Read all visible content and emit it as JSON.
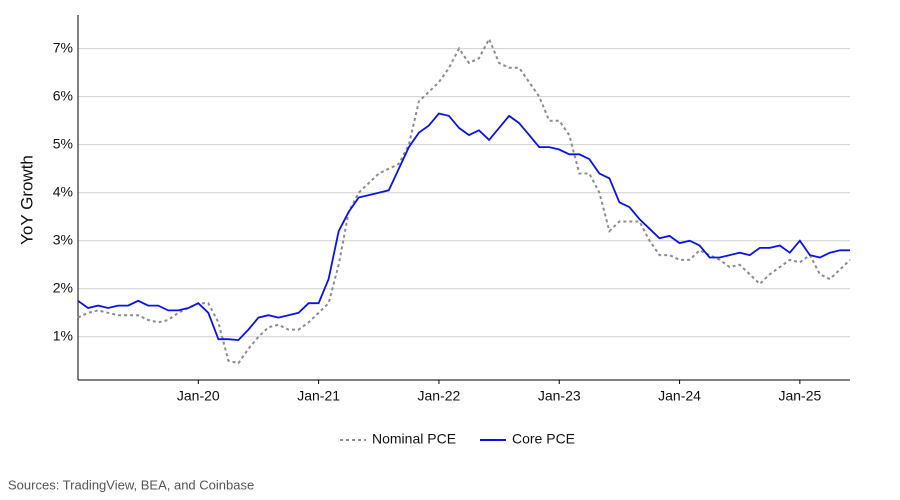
{
  "chart_data": {
    "type": "line",
    "y_label": "YoY Growth",
    "source": "Sources: TradingView, BEA, and Coinbase",
    "x": [
      "Jan-19",
      "Feb-19",
      "Mar-19",
      "Apr-19",
      "May-19",
      "Jun-19",
      "Jul-19",
      "Aug-19",
      "Sep-19",
      "Oct-19",
      "Nov-19",
      "Dec-19",
      "Jan-20",
      "Feb-20",
      "Mar-20",
      "Apr-20",
      "May-20",
      "Jun-20",
      "Jul-20",
      "Aug-20",
      "Sep-20",
      "Oct-20",
      "Nov-20",
      "Dec-20",
      "Jan-21",
      "Feb-21",
      "Mar-21",
      "Apr-21",
      "May-21",
      "Jun-21",
      "Jul-21",
      "Aug-21",
      "Sep-21",
      "Oct-21",
      "Nov-21",
      "Dec-21",
      "Jan-22",
      "Feb-22",
      "Mar-22",
      "Apr-22",
      "May-22",
      "Jun-22",
      "Jul-22",
      "Aug-22",
      "Sep-22",
      "Oct-22",
      "Nov-22",
      "Dec-22",
      "Jan-23",
      "Feb-23",
      "Mar-23",
      "Apr-23",
      "May-23",
      "Jun-23",
      "Jul-23",
      "Aug-23",
      "Sep-23",
      "Oct-23",
      "Nov-23",
      "Dec-23",
      "Jan-24",
      "Feb-24",
      "Mar-24",
      "Apr-24",
      "May-24",
      "Jun-24",
      "Jul-24",
      "Aug-24",
      "Sep-24",
      "Oct-24",
      "Nov-24",
      "Dec-24",
      "Jan-25",
      "Feb-25",
      "Mar-25",
      "Apr-25",
      "May-25",
      "Jun-25"
    ],
    "xticks": [
      "Jan-20",
      "Jan-21",
      "Jan-22",
      "Jan-23",
      "Jan-24",
      "Jan-25"
    ],
    "series": [
      {
        "name": "Nominal PCE",
        "color": "#8c8c8c",
        "dash": true,
        "values": [
          1.4,
          1.5,
          1.55,
          1.5,
          1.45,
          1.45,
          1.45,
          1.35,
          1.3,
          1.35,
          1.5,
          1.6,
          1.7,
          1.7,
          1.3,
          0.5,
          0.45,
          0.75,
          1.0,
          1.2,
          1.25,
          1.15,
          1.15,
          1.3,
          1.5,
          1.7,
          2.5,
          3.6,
          4.0,
          4.2,
          4.4,
          4.5,
          4.6,
          5.0,
          5.9,
          6.1,
          6.3,
          6.6,
          7.0,
          6.7,
          6.8,
          7.2,
          6.7,
          6.6,
          6.6,
          6.3,
          6.0,
          5.5,
          5.5,
          5.2,
          4.4,
          4.4,
          4.0,
          3.2,
          3.4,
          3.4,
          3.4,
          3.0,
          2.7,
          2.7,
          2.6,
          2.6,
          2.8,
          2.7,
          2.6,
          2.45,
          2.5,
          2.3,
          2.1,
          2.3,
          2.45,
          2.6,
          2.55,
          2.7,
          2.3,
          2.2,
          2.4,
          2.6
        ]
      },
      {
        "name": "Core PCE",
        "color": "#0a14e6",
        "dash": false,
        "values": [
          1.75,
          1.6,
          1.65,
          1.6,
          1.65,
          1.65,
          1.75,
          1.65,
          1.65,
          1.55,
          1.55,
          1.6,
          1.7,
          1.5,
          0.95,
          0.95,
          0.93,
          1.15,
          1.4,
          1.45,
          1.4,
          1.45,
          1.5,
          1.7,
          1.7,
          2.2,
          3.2,
          3.6,
          3.9,
          3.95,
          4.0,
          4.05,
          4.5,
          4.95,
          5.25,
          5.4,
          5.65,
          5.6,
          5.35,
          5.2,
          5.3,
          5.1,
          5.35,
          5.6,
          5.45,
          5.2,
          4.95,
          4.95,
          4.9,
          4.8,
          4.8,
          4.7,
          4.4,
          4.3,
          3.8,
          3.7,
          3.45,
          3.25,
          3.05,
          3.1,
          2.95,
          3.0,
          2.9,
          2.65,
          2.65,
          2.7,
          2.75,
          2.7,
          2.85,
          2.85,
          2.9,
          2.75,
          3.0,
          2.7,
          2.65,
          2.75,
          2.8,
          2.8
        ]
      }
    ],
    "ylim": [
      0.1,
      7.7
    ],
    "yticks": [
      {
        "value": 1,
        "label": "1%"
      },
      {
        "value": 2,
        "label": "2%"
      },
      {
        "value": 3,
        "label": "3%"
      },
      {
        "value": 4,
        "label": "4%"
      },
      {
        "value": 5,
        "label": "5%"
      },
      {
        "value": 6,
        "label": "6%"
      },
      {
        "value": 7,
        "label": "7%"
      }
    ],
    "grid": true,
    "legend": "bottom"
  }
}
